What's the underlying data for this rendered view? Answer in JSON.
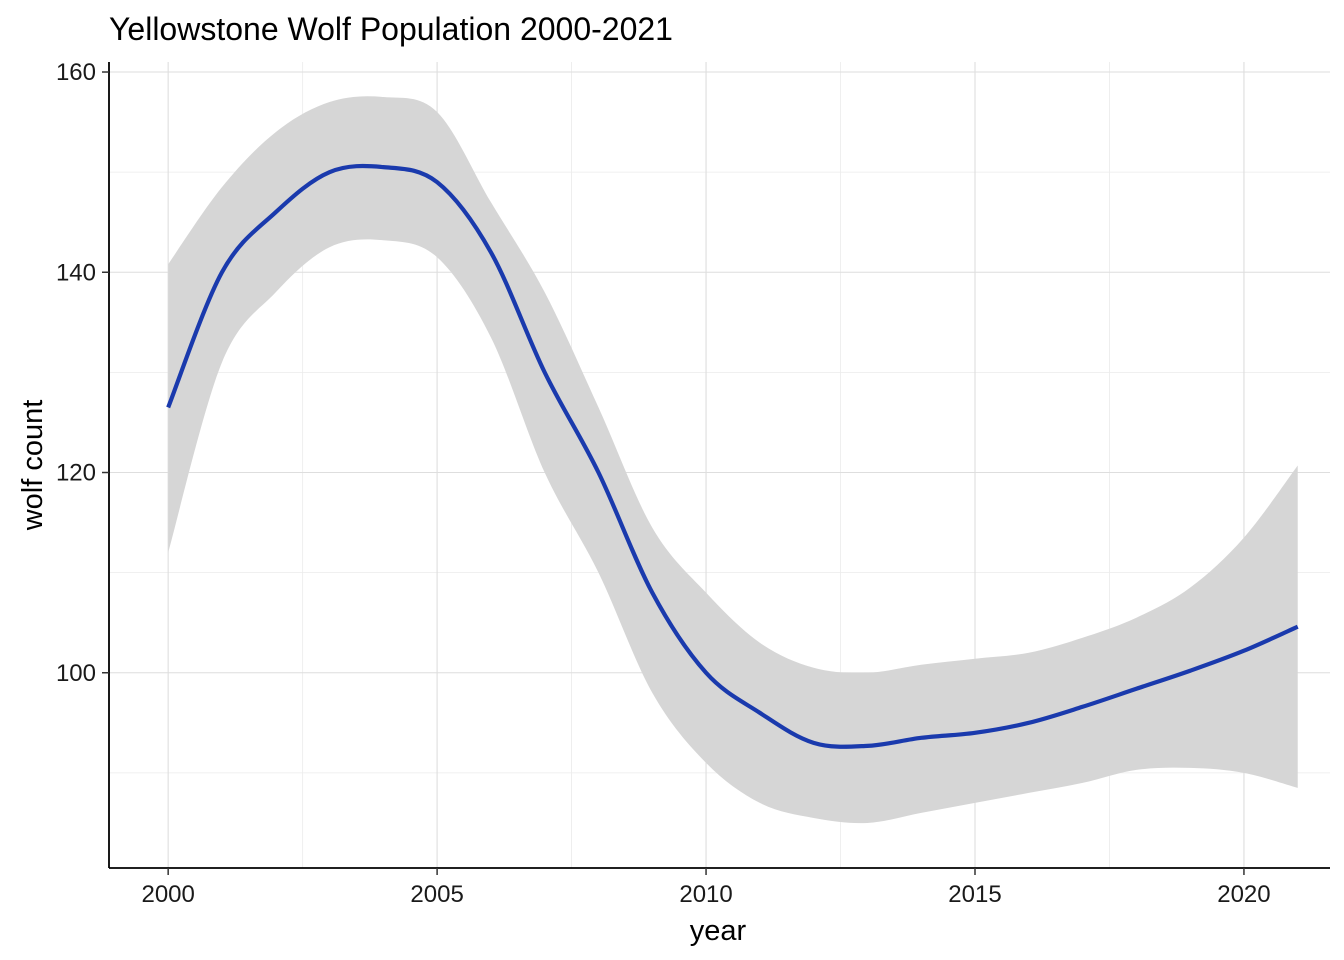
{
  "chart_data": {
    "type": "line",
    "title": "Yellowstone Wolf Population 2000-2021",
    "xlabel": "year",
    "ylabel": "wolf count",
    "xlim": [
      1998.9,
      2021.6
    ],
    "ylim": [
      80.5,
      161
    ],
    "x_ticks": [
      2000,
      2005,
      2010,
      2015,
      2020
    ],
    "x_tick_labels": [
      "2000",
      "2005",
      "2010",
      "2015",
      "2020"
    ],
    "y_ticks": [
      100,
      120,
      140,
      160
    ],
    "y_tick_labels": [
      "100",
      "120",
      "140",
      "160"
    ],
    "x_minor": [
      2002.5,
      2007.5,
      2012.5,
      2017.5
    ],
    "y_minor": [
      90,
      110,
      130,
      150
    ],
    "grid": true,
    "legend": "none",
    "colors": {
      "line": "#1a3aad",
      "band": "#d6d6d6"
    },
    "series": [
      {
        "x": [
          2000,
          2001,
          2002,
          2003,
          2004,
          2005,
          2006,
          2007,
          2008,
          2009,
          2010,
          2011,
          2012,
          2013,
          2014,
          2015,
          2016,
          2017,
          2018,
          2019,
          2020,
          2021
        ],
        "y": [
          126.5,
          140,
          146,
          150,
          150.5,
          149,
          142,
          130,
          120,
          108,
          100,
          96,
          93,
          92.7,
          93.5,
          94,
          95,
          96.6,
          98.4,
          100.2,
          102.2,
          104.6
        ],
        "lower": [
          112,
          131,
          138,
          142.5,
          143.2,
          141.5,
          133.5,
          120,
          110,
          98,
          91,
          87,
          85.5,
          85,
          86,
          87,
          88,
          89,
          90.3,
          90.5,
          90,
          88.5
        ],
        "upper": [
          140.8,
          148.5,
          154,
          157,
          157.5,
          156,
          147,
          138,
          126.5,
          114.5,
          108,
          103,
          100.5,
          100,
          100.8,
          101.4,
          102,
          103.5,
          105.5,
          108.5,
          113.5,
          120.7
        ]
      }
    ]
  }
}
